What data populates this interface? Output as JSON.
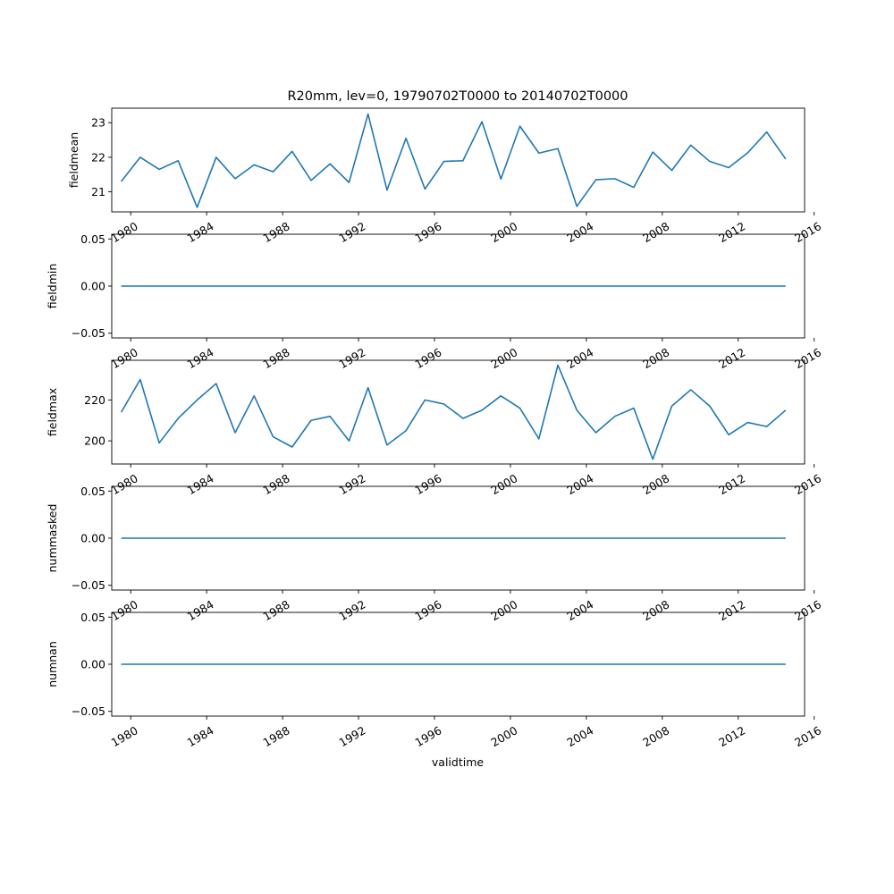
{
  "figure": {
    "title": "R20mm, lev=0, 19790702T0000 to 20140702T0000",
    "xlabel": "validtime",
    "line_color": "#1f77b4"
  },
  "chart_data": [
    {
      "type": "line",
      "ylabel": "fieldmean",
      "ylim": [
        20.42,
        23.42
      ],
      "yticks": [
        21,
        22,
        23
      ],
      "ytick_labels": [
        "21",
        "22",
        "23"
      ],
      "series": [
        {
          "x": [
            "1979-07-02",
            "1980-07-02",
            "1981-07-02",
            "1982-07-02",
            "1983-07-02",
            "1984-07-02",
            "1985-07-02",
            "1986-07-02",
            "1987-07-02",
            "1988-07-02",
            "1989-07-02",
            "1990-07-02",
            "1991-07-02",
            "1992-07-02",
            "1993-07-02",
            "1994-07-02",
            "1995-07-02",
            "1996-07-02",
            "1997-07-02",
            "1998-07-02",
            "1999-07-02",
            "2000-07-02",
            "2001-07-02",
            "2002-07-02",
            "2003-07-02",
            "2004-07-02",
            "2005-07-02",
            "2006-07-02",
            "2007-07-02",
            "2008-07-02",
            "2009-07-02",
            "2010-07-02",
            "2011-07-02",
            "2012-07-02",
            "2013-07-02",
            "2014-07-02"
          ],
          "values": [
            21.3,
            22.0,
            21.65,
            21.9,
            20.55,
            22.0,
            21.38,
            21.78,
            21.58,
            22.17,
            21.33,
            21.81,
            21.27,
            23.25,
            21.05,
            22.55,
            21.08,
            21.88,
            21.9,
            23.03,
            21.37,
            22.9,
            22.12,
            22.25,
            20.58,
            21.35,
            21.38,
            21.13,
            22.15,
            21.62,
            22.35,
            21.88,
            21.7,
            22.13,
            22.73,
            21.95
          ]
        }
      ]
    },
    {
      "type": "line",
      "ylabel": "fieldmin",
      "ylim": [
        -0.055,
        0.055
      ],
      "yticks": [
        -0.05,
        0,
        0.05
      ],
      "ytick_labels": [
        "−0.05",
        "0.00",
        "0.05"
      ],
      "series": [
        {
          "x": [
            "1979-07-02",
            "1980-07-02",
            "1981-07-02",
            "1982-07-02",
            "1983-07-02",
            "1984-07-02",
            "1985-07-02",
            "1986-07-02",
            "1987-07-02",
            "1988-07-02",
            "1989-07-02",
            "1990-07-02",
            "1991-07-02",
            "1992-07-02",
            "1993-07-02",
            "1994-07-02",
            "1995-07-02",
            "1996-07-02",
            "1997-07-02",
            "1998-07-02",
            "1999-07-02",
            "2000-07-02",
            "2001-07-02",
            "2002-07-02",
            "2003-07-02",
            "2004-07-02",
            "2005-07-02",
            "2006-07-02",
            "2007-07-02",
            "2008-07-02",
            "2009-07-02",
            "2010-07-02",
            "2011-07-02",
            "2012-07-02",
            "2013-07-02",
            "2014-07-02"
          ],
          "values": [
            0,
            0,
            0,
            0,
            0,
            0,
            0,
            0,
            0,
            0,
            0,
            0,
            0,
            0,
            0,
            0,
            0,
            0,
            0,
            0,
            0,
            0,
            0,
            0,
            0,
            0,
            0,
            0,
            0,
            0,
            0,
            0,
            0,
            0,
            0,
            0
          ]
        }
      ]
    },
    {
      "type": "line",
      "ylabel": "fieldmax",
      "ylim": [
        188.7,
        239.4
      ],
      "yticks": [
        200,
        220
      ],
      "ytick_labels": [
        "200",
        "220"
      ],
      "series": [
        {
          "x": [
            "1979-07-02",
            "1980-07-02",
            "1981-07-02",
            "1982-07-02",
            "1983-07-02",
            "1984-07-02",
            "1985-07-02",
            "1986-07-02",
            "1987-07-02",
            "1988-07-02",
            "1989-07-02",
            "1990-07-02",
            "1991-07-02",
            "1992-07-02",
            "1993-07-02",
            "1994-07-02",
            "1995-07-02",
            "1996-07-02",
            "1997-07-02",
            "1998-07-02",
            "1999-07-02",
            "2000-07-02",
            "2001-07-02",
            "2002-07-02",
            "2003-07-02",
            "2004-07-02",
            "2005-07-02",
            "2006-07-02",
            "2007-07-02",
            "2008-07-02",
            "2009-07-02",
            "2010-07-02",
            "2011-07-02",
            "2012-07-02",
            "2013-07-02",
            "2014-07-02"
          ],
          "values": [
            214,
            230,
            199,
            211,
            220,
            228,
            204,
            222,
            202,
            197,
            210,
            212,
            200,
            226,
            198,
            205,
            220,
            218,
            211,
            215,
            222,
            216,
            201,
            237,
            215,
            204,
            212,
            216,
            191,
            217,
            225,
            217,
            203,
            209,
            207,
            215
          ]
        }
      ]
    },
    {
      "type": "line",
      "ylabel": "nummasked",
      "ylim": [
        -0.055,
        0.055
      ],
      "yticks": [
        -0.05,
        0,
        0.05
      ],
      "ytick_labels": [
        "−0.05",
        "0.00",
        "0.05"
      ],
      "series": [
        {
          "x": [
            "1979-07-02",
            "1980-07-02",
            "1981-07-02",
            "1982-07-02",
            "1983-07-02",
            "1984-07-02",
            "1985-07-02",
            "1986-07-02",
            "1987-07-02",
            "1988-07-02",
            "1989-07-02",
            "1990-07-02",
            "1991-07-02",
            "1992-07-02",
            "1993-07-02",
            "1994-07-02",
            "1995-07-02",
            "1996-07-02",
            "1997-07-02",
            "1998-07-02",
            "1999-07-02",
            "2000-07-02",
            "2001-07-02",
            "2002-07-02",
            "2003-07-02",
            "2004-07-02",
            "2005-07-02",
            "2006-07-02",
            "2007-07-02",
            "2008-07-02",
            "2009-07-02",
            "2010-07-02",
            "2011-07-02",
            "2012-07-02",
            "2013-07-02",
            "2014-07-02"
          ],
          "values": [
            0,
            0,
            0,
            0,
            0,
            0,
            0,
            0,
            0,
            0,
            0,
            0,
            0,
            0,
            0,
            0,
            0,
            0,
            0,
            0,
            0,
            0,
            0,
            0,
            0,
            0,
            0,
            0,
            0,
            0,
            0,
            0,
            0,
            0,
            0,
            0
          ]
        }
      ]
    },
    {
      "type": "line",
      "ylabel": "numnan",
      "ylim": [
        -0.055,
        0.055
      ],
      "yticks": [
        -0.05,
        0,
        0.05
      ],
      "ytick_labels": [
        "−0.05",
        "0.00",
        "0.05"
      ],
      "series": [
        {
          "x": [
            "1979-07-02",
            "1980-07-02",
            "1981-07-02",
            "1982-07-02",
            "1983-07-02",
            "1984-07-02",
            "1985-07-02",
            "1986-07-02",
            "1987-07-02",
            "1988-07-02",
            "1989-07-02",
            "1990-07-02",
            "1991-07-02",
            "1992-07-02",
            "1993-07-02",
            "1994-07-02",
            "1995-07-02",
            "1996-07-02",
            "1997-07-02",
            "1998-07-02",
            "1999-07-02",
            "2000-07-02",
            "2001-07-02",
            "2002-07-02",
            "2003-07-02",
            "2004-07-02",
            "2005-07-02",
            "2006-07-02",
            "2007-07-02",
            "2008-07-02",
            "2009-07-02",
            "2010-07-02",
            "2011-07-02",
            "2012-07-02",
            "2013-07-02",
            "2014-07-02"
          ],
          "values": [
            0,
            0,
            0,
            0,
            0,
            0,
            0,
            0,
            0,
            0,
            0,
            0,
            0,
            0,
            0,
            0,
            0,
            0,
            0,
            0,
            0,
            0,
            0,
            0,
            0,
            0,
            0,
            0,
            0,
            0,
            0,
            0,
            0,
            0,
            0,
            0
          ]
        }
      ]
    }
  ],
  "x_axis": {
    "xlim": [
      "1979-01-01",
      "2015-07-01"
    ],
    "ticks": [
      "1980-01-01",
      "1984-01-01",
      "1988-01-01",
      "1992-01-01",
      "1996-01-01",
      "2000-01-01",
      "2004-01-01",
      "2008-01-01",
      "2012-01-01",
      "2016-01-01"
    ],
    "tick_labels": [
      "1980",
      "1984",
      "1988",
      "1992",
      "1996",
      "2000",
      "2004",
      "2008",
      "2012",
      "2016"
    ]
  }
}
